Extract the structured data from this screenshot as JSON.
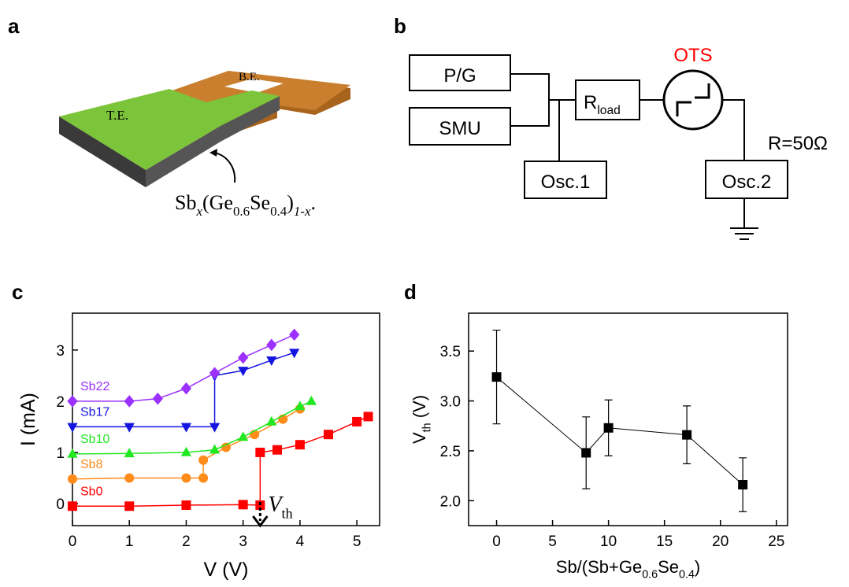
{
  "panels": {
    "a": {
      "label": "a",
      "top_electrode": "T.E.",
      "bottom_electrode": "B.E.",
      "material": [
        {
          "text": "Sb"
        },
        {
          "text": "x",
          "sub": true,
          "italic": true
        },
        {
          "text": "(Ge"
        },
        {
          "text": "0.6",
          "sub": true
        },
        {
          "text": "Se"
        },
        {
          "text": "0.4",
          "sub": true
        },
        {
          "text": ")"
        },
        {
          "text": "1-x",
          "sub": true,
          "italic": true
        },
        {
          "text": "."
        }
      ]
    },
    "b": {
      "label": "b",
      "pulse_generator": "P/G",
      "smu": "SMU",
      "load": [
        {
          "text": "R"
        },
        {
          "text": "load",
          "sub": true
        }
      ],
      "device": "OTS",
      "osc1": "Osc.1",
      "osc2": "Osc.2",
      "resistance": "R=50Ω"
    }
  },
  "chart_data": [
    {
      "type": "line",
      "panel_label": "c",
      "xlabel": "V (V)",
      "ylabel": "I (mA)",
      "xlim": [
        0,
        5.4
      ],
      "ylim": [
        -0.43,
        3.72
      ],
      "xticks": [
        0,
        1,
        2,
        3,
        4,
        5
      ],
      "yticks": [
        0,
        1,
        2,
        3
      ],
      "annotation": [
        {
          "text": "V",
          "italic": true
        },
        {
          "text": "th",
          "sub": true
        }
      ],
      "series": [
        {
          "name": "Sb0",
          "color": "#ff0000",
          "marker": "square",
          "x": [
            0,
            1,
            2,
            3,
            3.3,
            3.3,
            3.6,
            4,
            4.5,
            5,
            5.2
          ],
          "values": [
            -0.05,
            -0.05,
            -0.03,
            -0.02,
            -0.03,
            1.0,
            1.05,
            1.15,
            1.35,
            1.6,
            1.7
          ]
        },
        {
          "name": "Sb8",
          "color": "#ff8c1a",
          "marker": "circle",
          "x": [
            0,
            1,
            2,
            2.3,
            2.3,
            2.7,
            3.2,
            3.7,
            4.0
          ],
          "values": [
            0.48,
            0.5,
            0.5,
            0.5,
            0.85,
            1.1,
            1.35,
            1.65,
            1.85
          ]
        },
        {
          "name": "Sb10",
          "color": "#22e822",
          "marker": "triangle",
          "x": [
            0,
            1,
            2,
            2.5,
            3,
            3.5,
            4,
            4.2
          ],
          "values": [
            0.97,
            0.98,
            1.0,
            1.05,
            1.3,
            1.6,
            1.9,
            2.0
          ]
        },
        {
          "name": "Sb17",
          "color": "#1515e0",
          "marker": "triangle-down",
          "x": [
            0,
            1,
            2,
            2.5,
            2.5,
            3,
            3.5,
            3.9
          ],
          "values": [
            1.5,
            1.5,
            1.5,
            1.5,
            2.5,
            2.6,
            2.8,
            2.95
          ]
        },
        {
          "name": "Sb22",
          "color": "#9b30ff",
          "marker": "diamond",
          "x": [
            0,
            1,
            1.5,
            2,
            2.5,
            3,
            3.5,
            3.9
          ],
          "values": [
            2.0,
            2.0,
            2.05,
            2.25,
            2.55,
            2.85,
            3.1,
            3.3
          ]
        }
      ]
    },
    {
      "type": "scatter",
      "panel_label": "d",
      "xlabel": [
        {
          "text": "Sb/(Sb+Ge"
        },
        {
          "text": "0.6",
          "sub": true
        },
        {
          "text": "Se"
        },
        {
          "text": "0.4",
          "sub": true
        },
        {
          "text": ")"
        }
      ],
      "ylabel": [
        {
          "text": "V"
        },
        {
          "text": "th",
          "sub": true
        },
        {
          "text": " (V)"
        }
      ],
      "xlim": [
        -2.5,
        26
      ],
      "ylim": [
        1.75,
        3.88
      ],
      "xticks": [
        0,
        5,
        10,
        15,
        20,
        25
      ],
      "yticks": [
        {
          "value": 2,
          "label": "2.0"
        },
        {
          "value": 2.5,
          "label": "2.5"
        },
        {
          "value": 3,
          "label": "3.0"
        },
        3.5
      ],
      "color": "#000000",
      "connect": true,
      "x": [
        0,
        8,
        10,
        17,
        22
      ],
      "values": [
        3.24,
        2.48,
        2.73,
        2.66,
        2.16
      ],
      "errors": [
        0.47,
        0.36,
        0.28,
        0.29,
        0.27
      ]
    }
  ]
}
